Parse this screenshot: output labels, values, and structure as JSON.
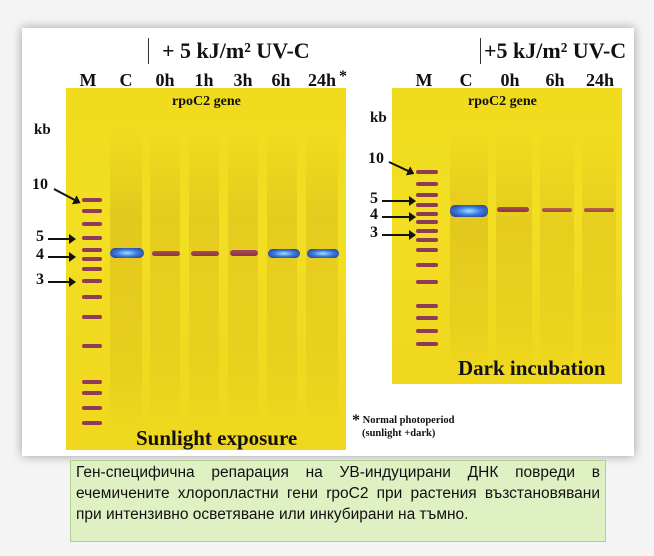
{
  "left_panel": {
    "treatment": "+ 5 kJ/m² UV-C",
    "lanes": [
      "M",
      "C",
      "0h",
      "1h",
      "3h",
      "6h",
      "24h"
    ],
    "asterisk": "*",
    "gene_label": "rpoC2 gene",
    "unit": "kb",
    "size_markers": [
      "10",
      "5",
      "4",
      "3"
    ],
    "condition_label": "Sunlight exposure"
  },
  "right_panel": {
    "treatment": "+5 kJ/m² UV-C",
    "lanes": [
      "M",
      "C",
      "0h",
      "6h",
      "24h"
    ],
    "gene_label": "rpoC2 gene",
    "unit": "kb",
    "size_markers": [
      "10",
      "5",
      "4",
      "3"
    ],
    "condition_label": "Dark incubation"
  },
  "footnote": {
    "mark": "*",
    "line1": "Normal photoperiod",
    "line2": "(sunlight +dark)"
  },
  "caption": "Ген-специфична репарация на УВ-индуцирани ДНК повреди в ечемичените хлоропластни гени rpoC2 при растения възстановявани при интензивно осветяване или инкубирани на тъмно.",
  "colors": {
    "gel": "#f0dc1c",
    "ladder": "#7d1f63",
    "band_core": "#3c7ae0",
    "caption_bg": "#dff0c3"
  }
}
